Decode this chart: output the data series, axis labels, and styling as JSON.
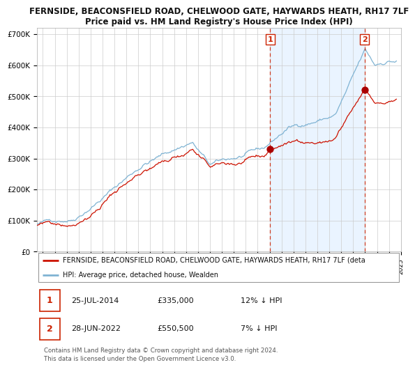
{
  "title1": "FERNSIDE, BEACONSFIELD ROAD, CHELWOOD GATE, HAYWARDS HEATH, RH17 7LF",
  "title2": "Price paid vs. HM Land Registry's House Price Index (HPI)",
  "legend_line1": "FERNSIDE, BEACONSFIELD ROAD, CHELWOOD GATE, HAYWARDS HEATH, RH17 7LF (deta",
  "legend_line2": "HPI: Average price, detached house, Wealden",
  "sale1_date": "25-JUL-2014",
  "sale1_price": "£335,000",
  "sale1_hpi": "12% ↓ HPI",
  "sale2_date": "28-JUN-2022",
  "sale2_price": "£550,500",
  "sale2_hpi": "7% ↓ HPI",
  "footer": "Contains HM Land Registry data © Crown copyright and database right 2024.\nThis data is licensed under the Open Government Licence v3.0.",
  "hpi_color": "#7fb3d3",
  "price_color": "#cc1100",
  "sale_dot_color": "#aa0000",
  "marker_line_color": "#cc2200",
  "shade_color": "#ddeeff",
  "background_color": "#ffffff",
  "grid_color": "#cccccc",
  "ylim": [
    0,
    720000
  ],
  "yticks": [
    0,
    100000,
    200000,
    300000,
    400000,
    500000,
    600000,
    700000
  ],
  "ytick_labels": [
    "£0",
    "£100K",
    "£200K",
    "£300K",
    "£400K",
    "£500K",
    "£600K",
    "£700K"
  ]
}
